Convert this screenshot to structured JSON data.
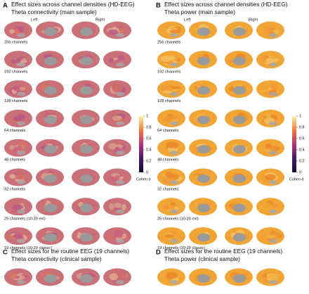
{
  "panels": [
    {
      "letter": "A",
      "title": "Effect sizes across channel densities (HD-EEG)",
      "subtitle": "Theta connectivity (main sample)",
      "left": "Left",
      "right": "Right",
      "rows": [
        "256 channels",
        "192 channels",
        "128 channels",
        "64 channels",
        "48 channels",
        "32 channels",
        "25 channels (10-20 ext)",
        "19 channels (10-20 classic)"
      ],
      "colorbar": {
        "lim": [
          0,
          1
        ],
        "ticks": [
          1,
          0.8,
          0.6,
          0.4,
          0.2,
          0
        ],
        "label": "Cohen d"
      }
    },
    {
      "letter": "B",
      "title": "Effect sizes across channel densities (HD-EEG)",
      "subtitle": "Theta power (main sample)",
      "left": "Left",
      "right": "Right",
      "rows": [
        "256 channels",
        "192 channels",
        "128 channels",
        "64 channels",
        "48 channels",
        "32 channels",
        "25 channels (10-20 ext)",
        "19 channels (10-20 classic)"
      ],
      "colorbar": {
        "lim": [
          0,
          1
        ],
        "ticks": [
          1,
          0.8,
          0.6,
          0.4,
          0.2,
          0
        ],
        "label": "Cohen d"
      }
    },
    {
      "letter": "C",
      "title": "Effect sizes for the routine EEG (19 channels)",
      "subtitle": "Theta connectivity (clinical sample)"
    },
    {
      "letter": "D",
      "title": "Effect sizes for the routine EEG (19 channels)",
      "subtitle": "Theta power (clinical sample)"
    }
  ]
}
